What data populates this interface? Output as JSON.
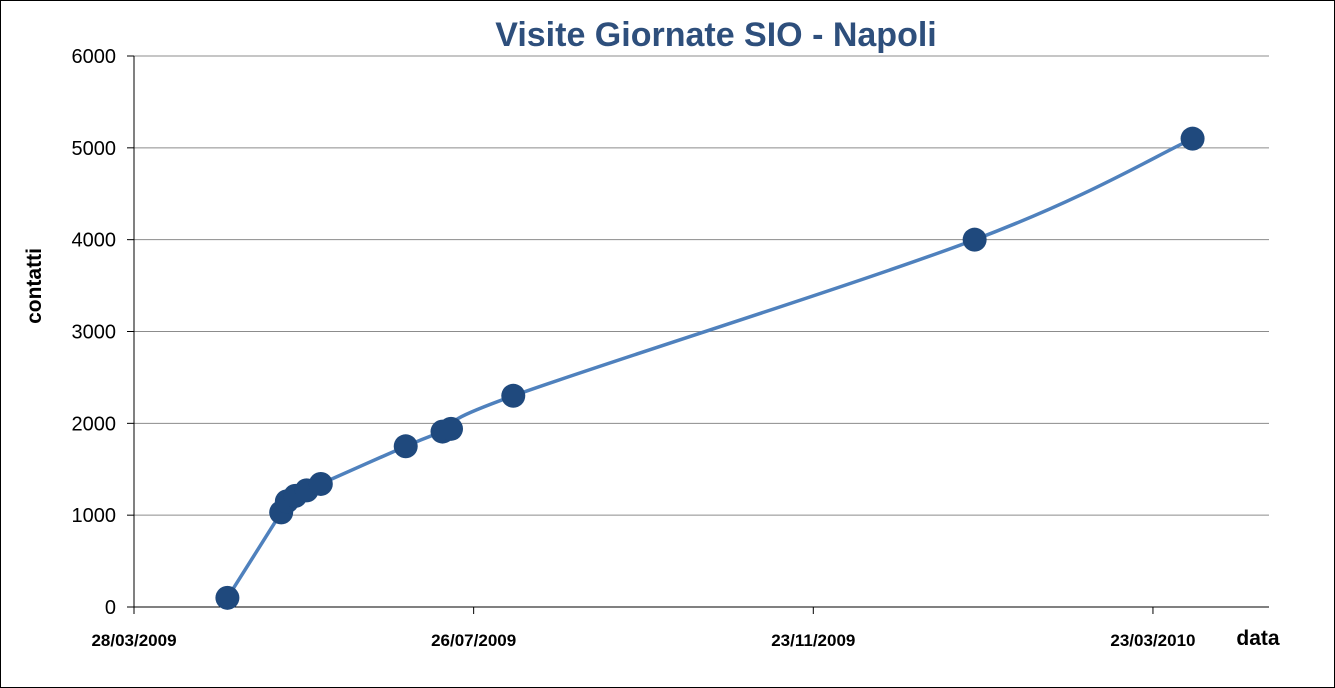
{
  "colors": {
    "title": "#2e4f7c",
    "line": "#4f81bd",
    "marker": "#1f497d",
    "grid": "#8c8c8c",
    "axis": "#000000"
  },
  "chart_data": {
    "type": "line",
    "title": "Visite Giornate SIO - Napoli",
    "xlabel": "data",
    "ylabel": "contatti",
    "x_axis_kind": "date",
    "y_axis": {
      "min": 0,
      "max": 6000,
      "step": 1000
    },
    "x_axis": {
      "min": "2009-03-28",
      "max": "2010-05-03"
    },
    "yticks": [
      "0",
      "1000",
      "2000",
      "3000",
      "4000",
      "5000",
      "6000"
    ],
    "xticks": [
      {
        "date": "2009-03-28",
        "label": "28/03/2009"
      },
      {
        "date": "2009-07-26",
        "label": "26/07/2009"
      },
      {
        "date": "2009-11-23",
        "label": "23/11/2009"
      },
      {
        "date": "2010-03-23",
        "label": "23/03/2010"
      }
    ],
    "grid": "horizontal",
    "legend": "none",
    "series": [
      {
        "marker": "circle",
        "smooth": true,
        "points": [
          {
            "x": "2009-04-30",
            "y": 100
          },
          {
            "x": "2009-05-19",
            "y": 1030
          },
          {
            "x": "2009-05-21",
            "y": 1150
          },
          {
            "x": "2009-05-24",
            "y": 1210
          },
          {
            "x": "2009-05-28",
            "y": 1270
          },
          {
            "x": "2009-06-02",
            "y": 1340
          },
          {
            "x": "2009-07-02",
            "y": 1750
          },
          {
            "x": "2009-07-15",
            "y": 1910
          },
          {
            "x": "2009-07-18",
            "y": 1940
          },
          {
            "x": "2009-08-09",
            "y": 2300
          },
          {
            "x": "2010-01-19",
            "y": 4000
          },
          {
            "x": "2010-04-06",
            "y": 5100
          }
        ]
      }
    ]
  }
}
